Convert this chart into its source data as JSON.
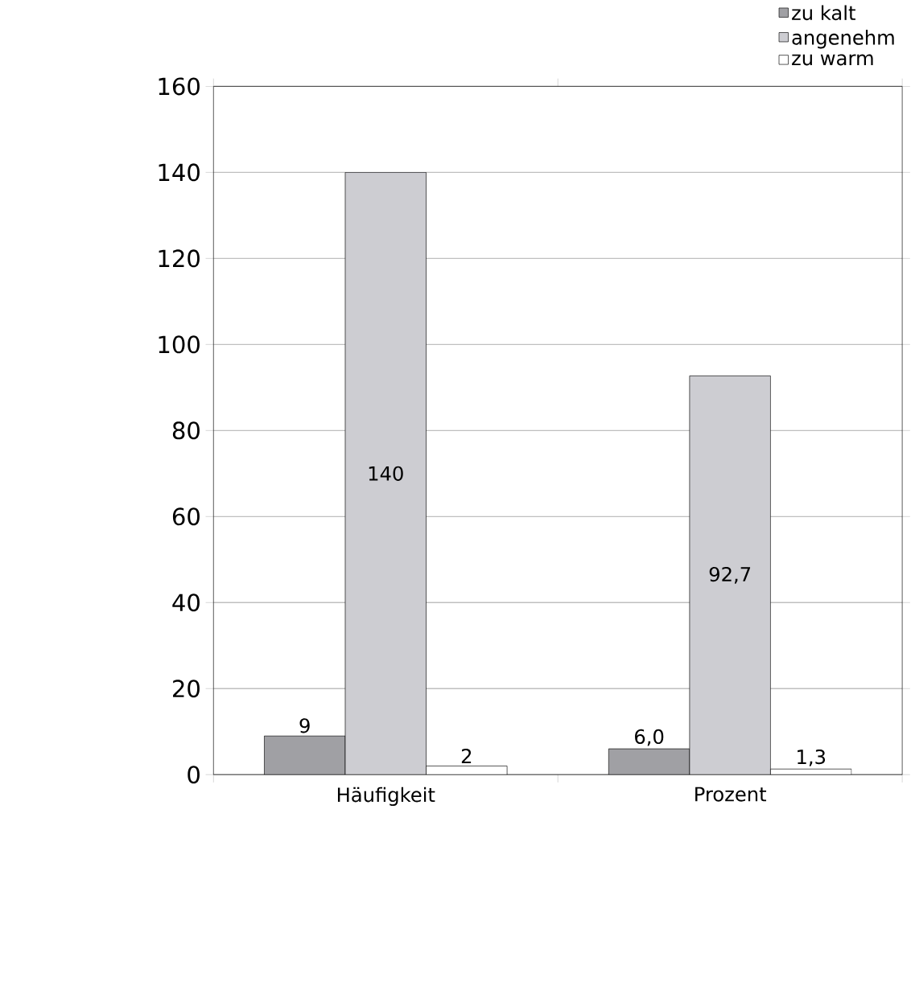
{
  "chart_data": {
    "type": "bar",
    "categories": [
      "Häufigkeit",
      "Prozent"
    ],
    "series": [
      {
        "name": "zu kalt",
        "color": "#a0a0a4",
        "values": [
          9,
          6.0
        ],
        "value_labels": [
          "9",
          "6,0"
        ]
      },
      {
        "name": "angenehm",
        "color": "#cdcdd2",
        "values": [
          140,
          92.7
        ],
        "value_labels": [
          "140",
          "92,7"
        ]
      },
      {
        "name": "zu warm",
        "color": "#ffffff",
        "values": [
          2,
          1.3
        ],
        "value_labels": [
          "2",
          "1,3"
        ]
      }
    ],
    "ylim": [
      0,
      160
    ],
    "yticks": [
      0,
      20,
      40,
      60,
      80,
      100,
      120,
      140,
      160
    ],
    "grid": "y",
    "legend": "top right"
  }
}
